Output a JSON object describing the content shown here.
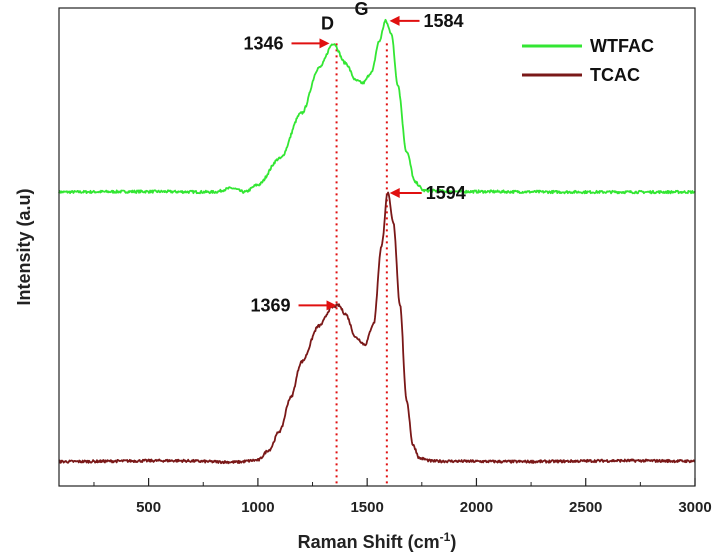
{
  "chart_data": {
    "type": "line",
    "title": "",
    "xlabel": "Raman Shift (cm",
    "xlabel_superscript": "-1",
    "xlabel_suffix": ")",
    "ylabel": "Intensity (a.u)",
    "xlim": [
      90,
      3000
    ],
    "ylim": [
      0,
      100
    ],
    "x_ticks": [
      500,
      1000,
      1500,
      2000,
      2500,
      3000
    ],
    "x_tick_labels": [
      "500",
      "1000",
      "1500",
      "2000",
      "2500",
      "3000"
    ],
    "y_ticks_shown": false,
    "grid": false,
    "legend_position": "top-right",
    "series": [
      {
        "name": "WTFAC",
        "color": "#33e633",
        "baseline": 61.5,
        "points": [
          [
            90,
            61.5
          ],
          [
            500,
            61.6
          ],
          [
            800,
            61.5
          ],
          [
            880,
            62.3
          ],
          [
            940,
            61.5
          ],
          [
            1000,
            63
          ],
          [
            1100,
            68.5
          ],
          [
            1200,
            78
          ],
          [
            1280,
            87.5
          ],
          [
            1346,
            92.6
          ],
          [
            1400,
            88.5
          ],
          [
            1450,
            84.8
          ],
          [
            1480,
            84.3
          ],
          [
            1520,
            86.5
          ],
          [
            1555,
            93
          ],
          [
            1584,
            97.3
          ],
          [
            1610,
            94.8
          ],
          [
            1640,
            84
          ],
          [
            1680,
            70
          ],
          [
            1720,
            63.5
          ],
          [
            1760,
            61.8
          ],
          [
            1900,
            61.6
          ],
          [
            2500,
            61.5
          ],
          [
            3000,
            61.5
          ]
        ]
      },
      {
        "name": "TCAC",
        "color": "#7a1818",
        "baseline": 5.1,
        "points": [
          [
            90,
            5.1
          ],
          [
            600,
            5.3
          ],
          [
            900,
            5.0
          ],
          [
            1000,
            5.4
          ],
          [
            1050,
            7.5
          ],
          [
            1100,
            11.5
          ],
          [
            1150,
            18.5
          ],
          [
            1200,
            26
          ],
          [
            1280,
            33.5
          ],
          [
            1340,
            37.4
          ],
          [
            1369,
            37.8
          ],
          [
            1400,
            36
          ],
          [
            1450,
            31
          ],
          [
            1490,
            29.6
          ],
          [
            1530,
            34
          ],
          [
            1565,
            50
          ],
          [
            1594,
            61.3
          ],
          [
            1620,
            55
          ],
          [
            1650,
            38
          ],
          [
            1680,
            18
          ],
          [
            1710,
            8.5
          ],
          [
            1740,
            5.8
          ],
          [
            1800,
            5.2
          ],
          [
            2200,
            5.1
          ],
          [
            2700,
            5.3
          ],
          [
            3000,
            5.2
          ]
        ]
      }
    ],
    "peak_labels": [
      {
        "text": "1346",
        "x": 1346,
        "y": 92.6
      },
      {
        "text": "1584",
        "x": 1584,
        "y": 97.3
      },
      {
        "text": "1369",
        "x": 1369,
        "y": 37.8
      },
      {
        "text": "1594",
        "x": 1594,
        "y": 61.3
      }
    ],
    "band_labels": [
      {
        "text": "D",
        "x": 1346
      },
      {
        "text": "G",
        "x": 1584
      }
    ],
    "guide_lines": [
      {
        "x": 1360
      },
      {
        "x": 1590
      }
    ],
    "annotation_color": "#e01010"
  }
}
